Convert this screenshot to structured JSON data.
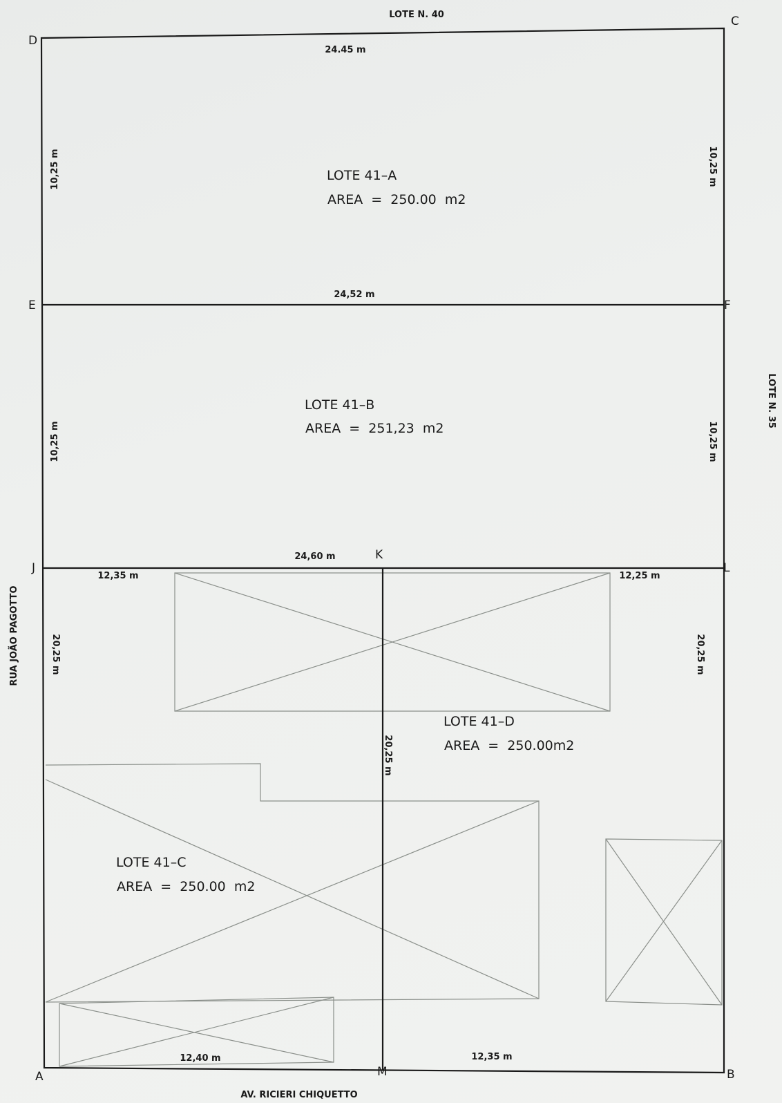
{
  "neighbors": {
    "top": "LOTE N. 40",
    "right": "LOTE N. 35",
    "left": "RUA JOÃO PAGOTTO",
    "bottom": "AV. RICIERI CHIQUETTO"
  },
  "points": {
    "A": "A",
    "B": "B",
    "C": "C",
    "D": "D",
    "E": "E",
    "F": "F",
    "J": "J",
    "K": "K",
    "L": "L",
    "M": "M"
  },
  "lots": {
    "a": {
      "name": "LOTE 41–A",
      "area": "AREA  =  250.00  m2"
    },
    "b": {
      "name": "LOTE 41–B",
      "area": "AREA  =  251,23  m2"
    },
    "c": {
      "name": "LOTE 41–C",
      "area": "AREA  =  250.00  m2"
    },
    "d": {
      "name": "LOTE 41–D",
      "area": "AREA  =  250.00m2"
    }
  },
  "dimensions": {
    "dc": "24.45 m",
    "ef": "24,52 m",
    "jk": "24,60 m",
    "jl_left": "12,35 m",
    "jl_right": "12,25 m",
    "am": "12,40 m",
    "mb": "12,35 m",
    "de": "10,25 m",
    "ej": "10,25 m",
    "ja": "20,25 m",
    "cf": "10,25 m",
    "fl": "10,25 m",
    "lb": "20,25 m",
    "km": "20,25 m"
  }
}
